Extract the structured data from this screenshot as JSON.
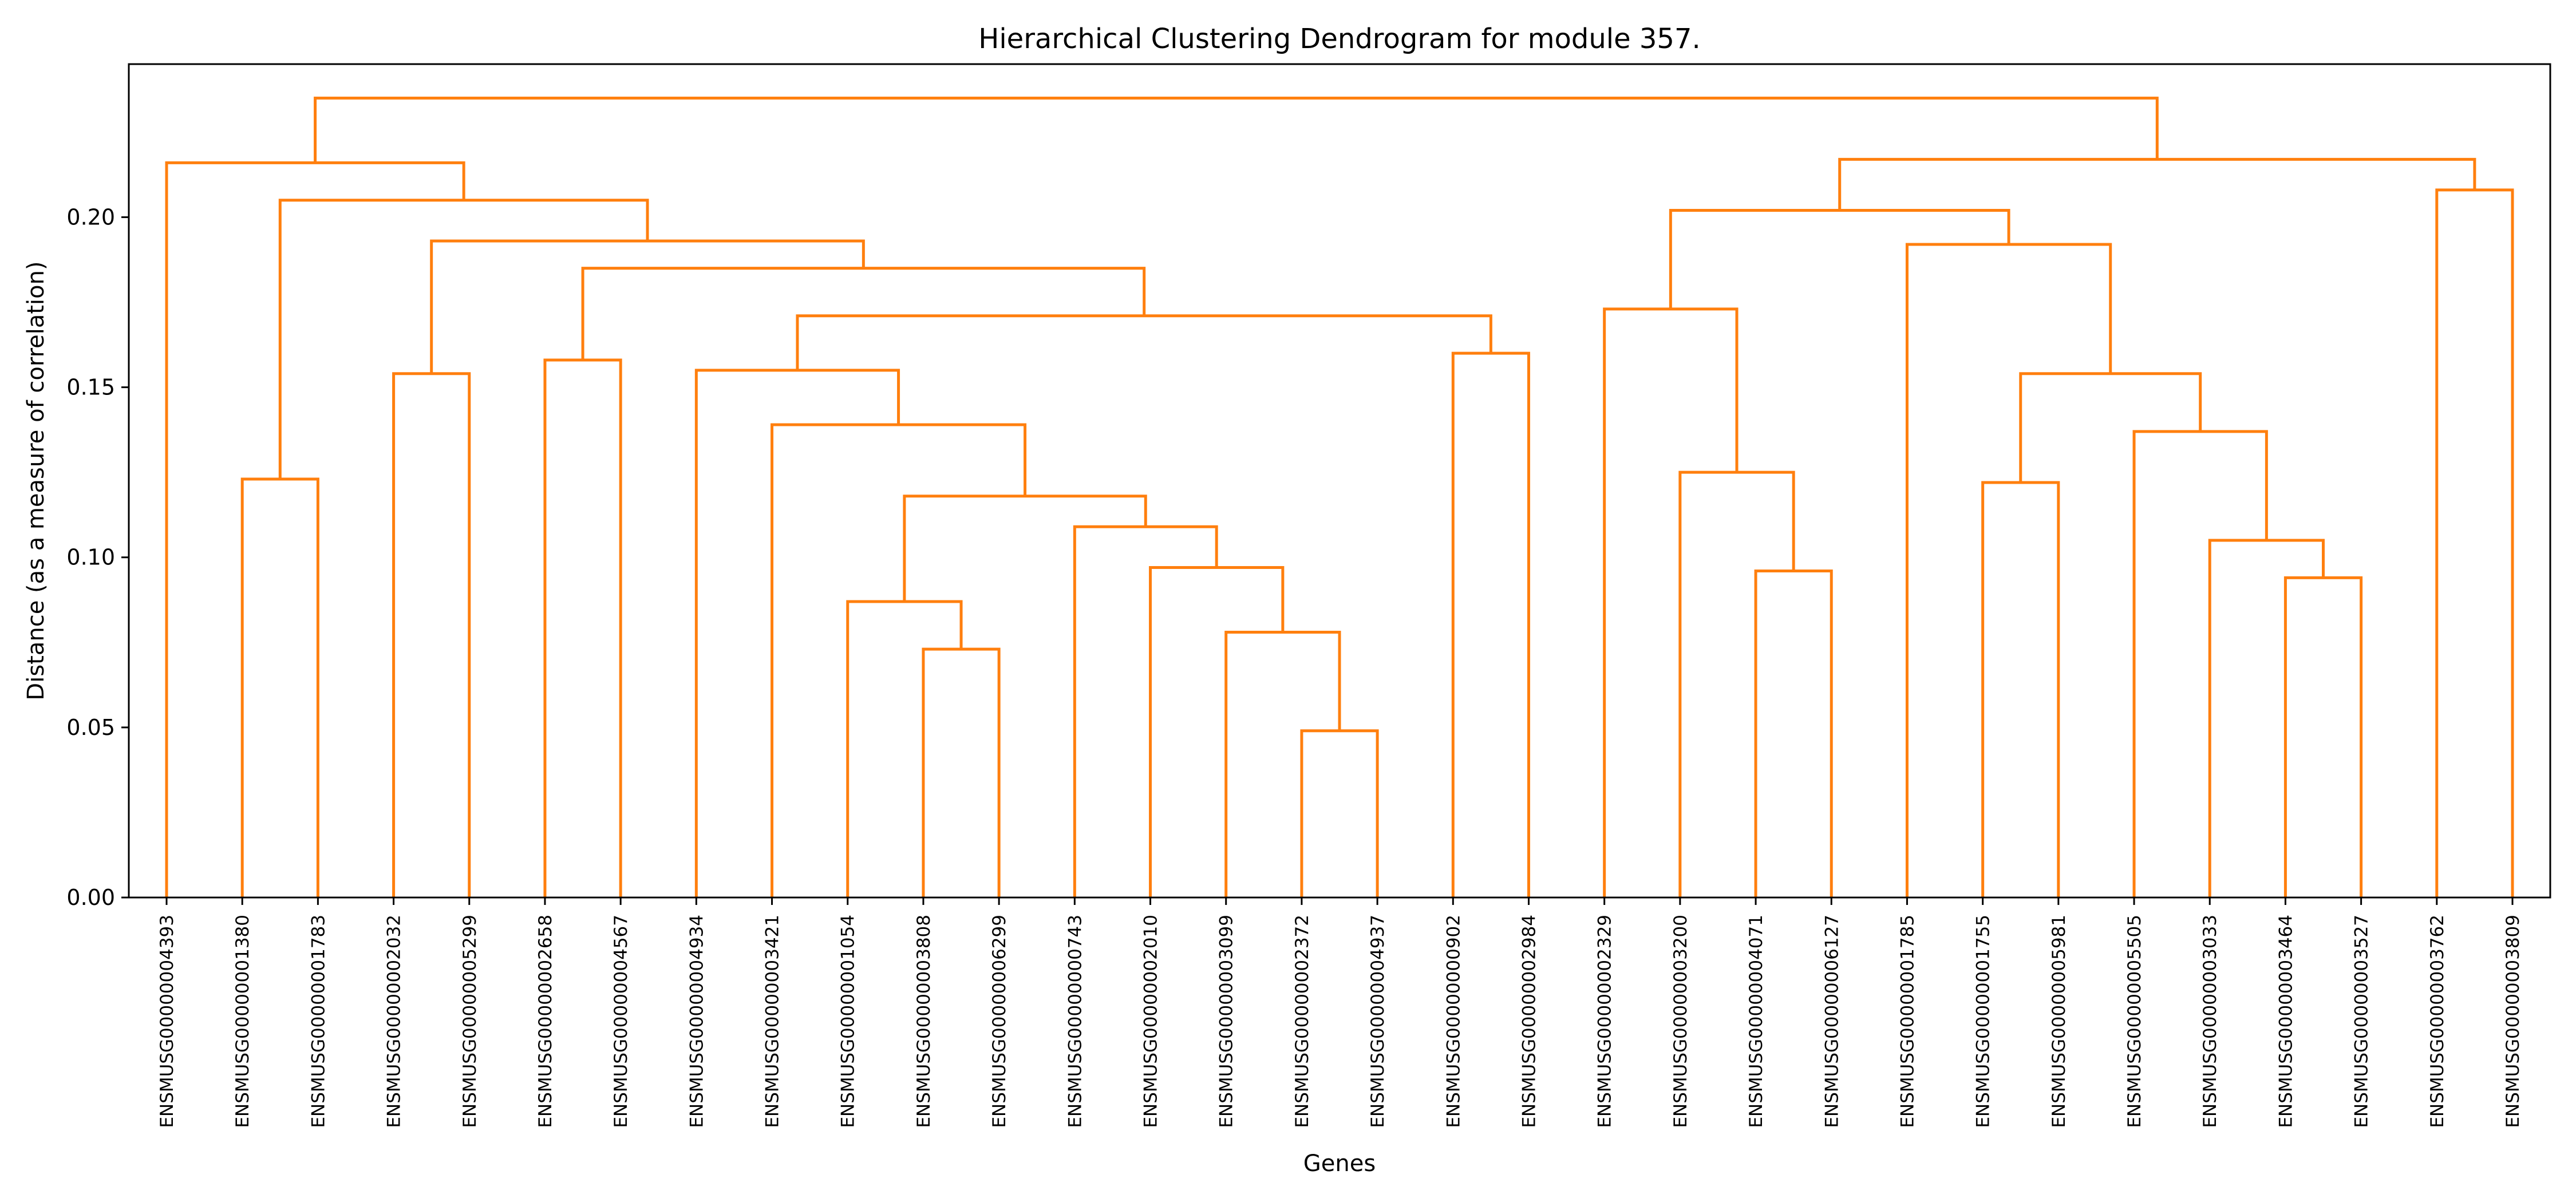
{
  "chart_data": {
    "type": "dendrogram",
    "title": "Hierarchical Clustering Dendrogram for module 357.",
    "xlabel": "Genes",
    "ylabel": "Distance (as a measure of correlation)",
    "ylim": [
      0,
      0.245
    ],
    "yticks": [
      0.0,
      0.05,
      0.1,
      0.15,
      0.2
    ],
    "ytick_labels": [
      "0.00",
      "0.05",
      "0.10",
      "0.15",
      "0.20"
    ],
    "link_color": "#ff7f0e",
    "leaves": [
      "ENSMUSG00000004393",
      "ENSMUSG00000001380",
      "ENSMUSG00000001783",
      "ENSMUSG00000002032",
      "ENSMUSG00000005299",
      "ENSMUSG00000002658",
      "ENSMUSG00000004567",
      "ENSMUSG00000004934",
      "ENSMUSG00000003421",
      "ENSMUSG00000001054",
      "ENSMUSG00000003808",
      "ENSMUSG00000006299",
      "ENSMUSG00000000743",
      "ENSMUSG00000002010",
      "ENSMUSG00000003099",
      "ENSMUSG00000002372",
      "ENSMUSG00000004937",
      "ENSMUSG00000000902",
      "ENSMUSG00000002984",
      "ENSMUSG00000002329",
      "ENSMUSG00000003200",
      "ENSMUSG00000004071",
      "ENSMUSG00000006127",
      "ENSMUSG00000001785",
      "ENSMUSG00000001755",
      "ENSMUSG00000005981",
      "ENSMUSG00000005505",
      "ENSMUSG00000003033",
      "ENSMUSG00000003464",
      "ENSMUSG00000003527",
      "ENSMUSG00000003762",
      "ENSMUSG00000003809"
    ],
    "merges": [
      [
        15,
        16,
        0.049
      ],
      [
        10,
        11,
        0.073
      ],
      [
        14,
        32,
        0.078
      ],
      [
        28,
        29,
        0.094
      ],
      [
        21,
        22,
        0.096
      ],
      [
        13,
        34,
        0.097
      ],
      [
        27,
        35,
        0.105
      ],
      [
        12,
        37,
        0.109
      ],
      [
        9,
        33,
        0.087
      ],
      [
        40,
        39,
        0.118
      ],
      [
        24,
        25,
        0.122
      ],
      [
        1,
        2,
        0.123
      ],
      [
        20,
        36,
        0.125
      ],
      [
        26,
        38,
        0.137
      ],
      [
        8,
        41,
        0.139
      ],
      [
        42,
        45,
        0.154
      ],
      [
        3,
        4,
        0.154
      ],
      [
        7,
        46,
        0.155
      ],
      [
        5,
        6,
        0.158
      ],
      [
        17,
        18,
        0.16
      ],
      [
        49,
        51,
        0.171
      ],
      [
        19,
        44,
        0.173
      ],
      [
        50,
        52,
        0.185
      ],
      [
        23,
        47,
        0.192
      ],
      [
        48,
        54,
        0.193
      ],
      [
        53,
        55,
        0.202
      ],
      [
        43,
        56,
        0.205
      ],
      [
        30,
        31,
        0.208
      ],
      [
        0,
        58,
        0.216
      ],
      [
        57,
        59,
        0.217
      ],
      [
        60,
        61,
        0.235
      ]
    ]
  }
}
